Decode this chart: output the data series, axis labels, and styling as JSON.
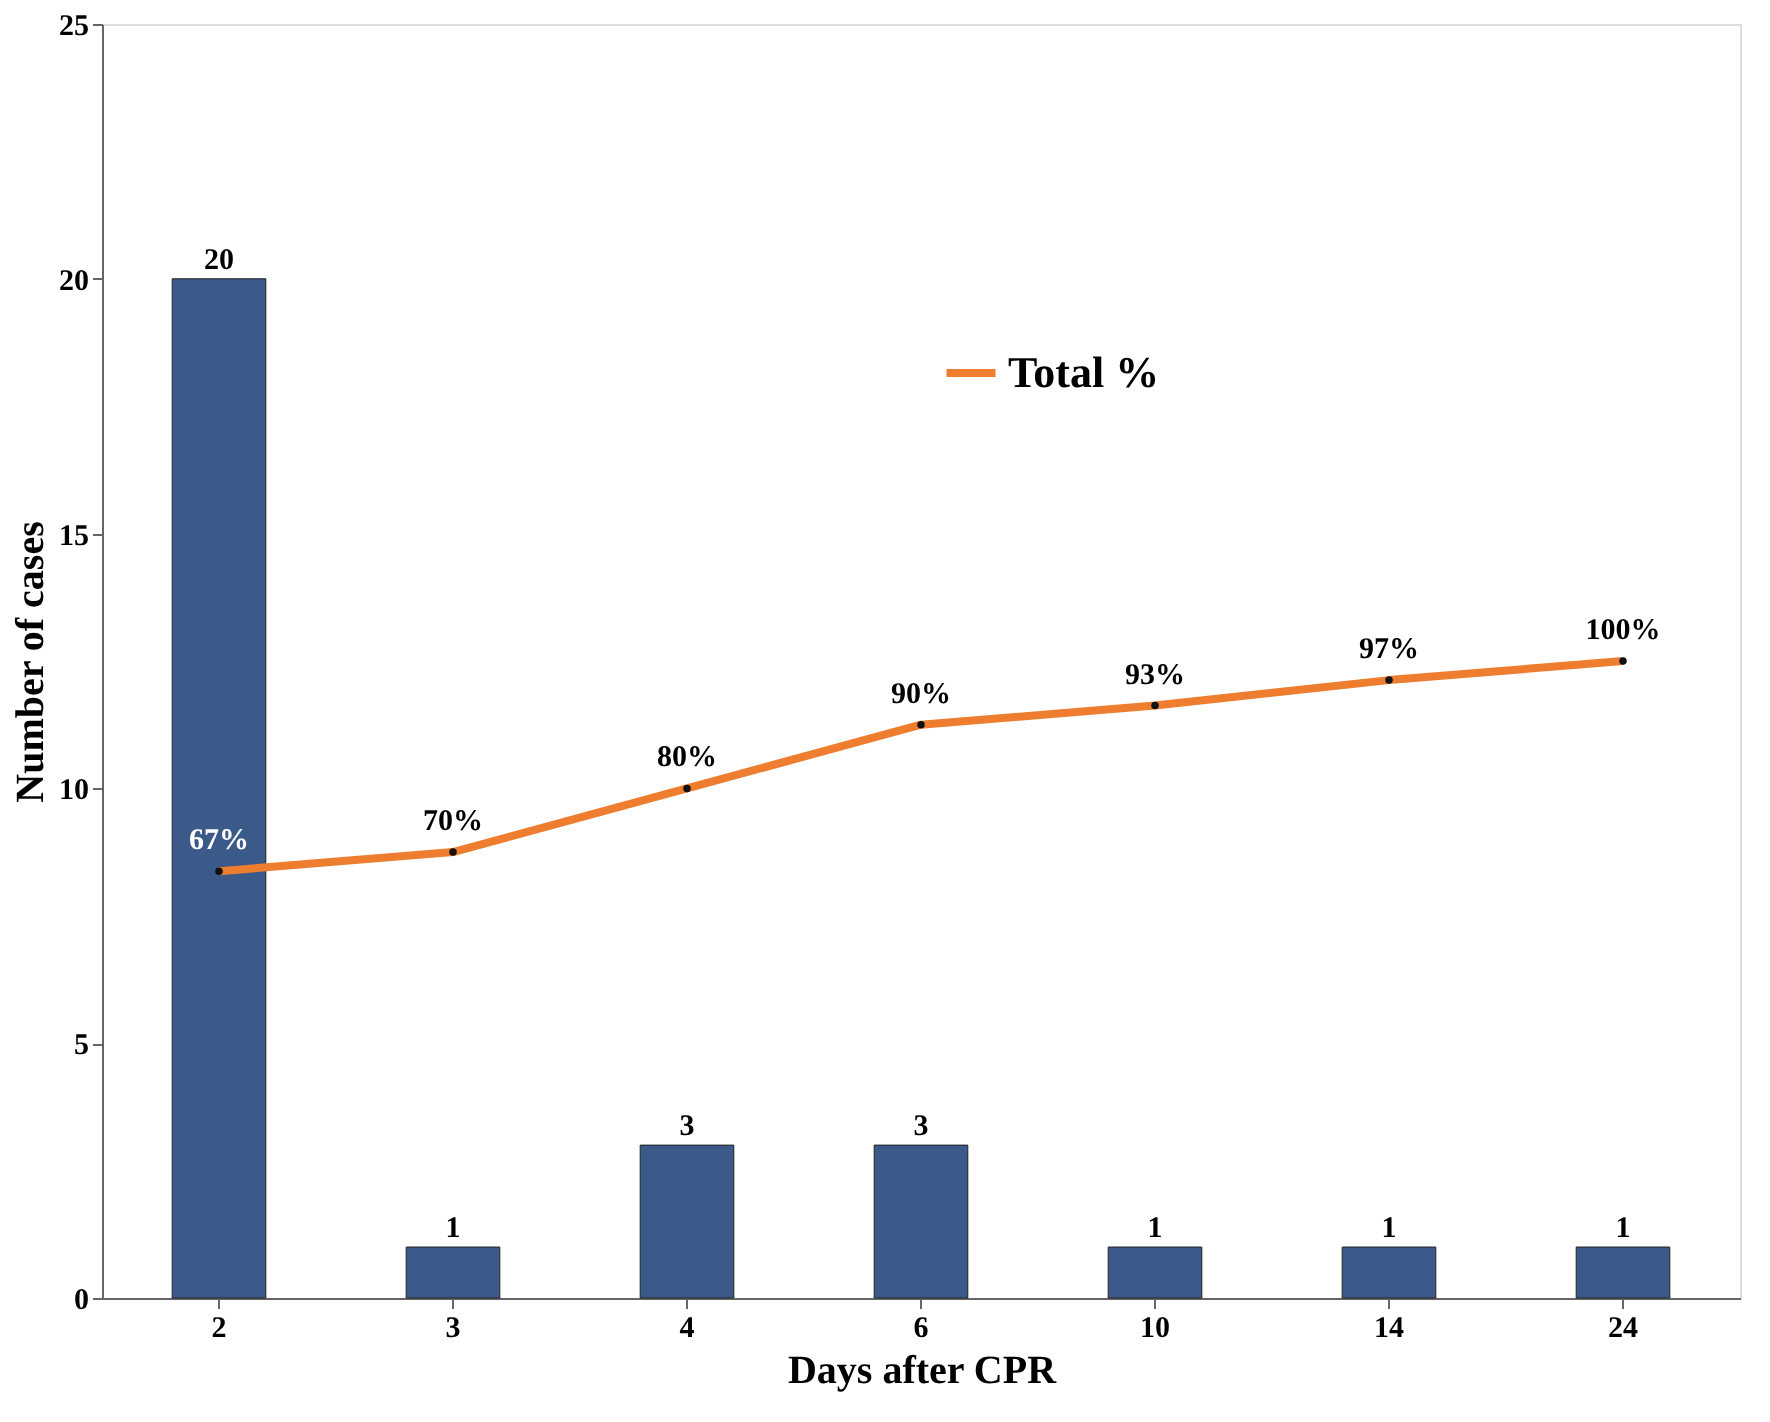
{
  "chart_data": {
    "type": "bar",
    "xlabel": "Days after CPR",
    "ylabel": "Number of cases",
    "categories": [
      "2",
      "3",
      "4",
      "6",
      "10",
      "14",
      "24"
    ],
    "series": [
      {
        "color": "#3b5a8a",
        "values": [
          20,
          1,
          3,
          3,
          1,
          1,
          1
        ],
        "value_labels": [
          "20",
          "1",
          "3",
          "3",
          "1",
          "1",
          "1"
        ]
      },
      {
        "type": "line",
        "name": "Total %",
        "axis": "y2",
        "color": "#ee7d2f",
        "marker": "circle",
        "values": [
          67,
          70,
          80,
          90,
          93,
          97,
          100
        ],
        "value_labels": [
          "67%",
          "70%",
          "80%",
          "90%",
          "93%",
          "97%",
          "100%"
        ]
      }
    ],
    "ylim": [
      0,
      25
    ],
    "yticks": [
      0,
      5,
      10,
      15,
      20,
      25
    ],
    "y2lim": [
      0,
      200
    ],
    "legend": "top",
    "grid": false
  }
}
